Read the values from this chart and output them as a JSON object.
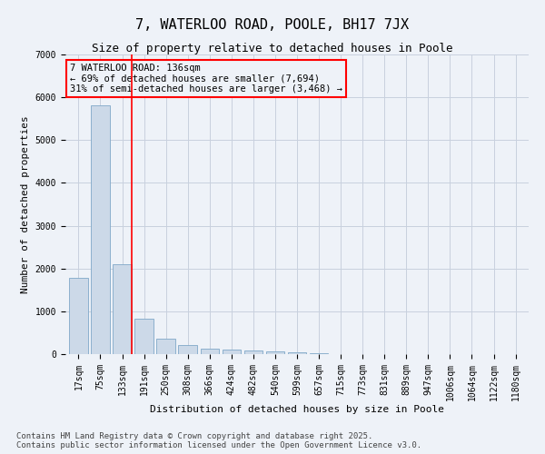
{
  "title": "7, WATERLOO ROAD, POOLE, BH17 7JX",
  "subtitle": "Size of property relative to detached houses in Poole",
  "xlabel": "Distribution of detached houses by size in Poole",
  "ylabel": "Number of detached properties",
  "categories": [
    "17sqm",
    "75sqm",
    "133sqm",
    "191sqm",
    "250sqm",
    "308sqm",
    "366sqm",
    "424sqm",
    "482sqm",
    "540sqm",
    "599sqm",
    "657sqm",
    "715sqm",
    "773sqm",
    "831sqm",
    "889sqm",
    "947sqm",
    "1006sqm",
    "1064sqm",
    "1122sqm",
    "1180sqm"
  ],
  "values": [
    1780,
    5820,
    2100,
    820,
    370,
    220,
    130,
    100,
    80,
    65,
    50,
    20,
    10,
    8,
    5,
    4,
    3,
    2,
    2,
    1,
    1
  ],
  "bar_color": "#ccd9e8",
  "bar_edge_color": "#7fa8c8",
  "red_line_index": 2,
  "annotation_box_text": "7 WATERLOO ROAD: 136sqm\n← 69% of detached houses are smaller (7,694)\n31% of semi-detached houses are larger (3,468) →",
  "ylim": [
    0,
    7000
  ],
  "yticks": [
    0,
    1000,
    2000,
    3000,
    4000,
    5000,
    6000,
    7000
  ],
  "background_color": "#eef2f8",
  "grid_color": "#c8d0de",
  "footer_line1": "Contains HM Land Registry data © Crown copyright and database right 2025.",
  "footer_line2": "Contains public sector information licensed under the Open Government Licence v3.0.",
  "title_fontsize": 11,
  "subtitle_fontsize": 9,
  "axis_label_fontsize": 8,
  "tick_fontsize": 7,
  "annotation_fontsize": 7.5,
  "footer_fontsize": 6.5
}
